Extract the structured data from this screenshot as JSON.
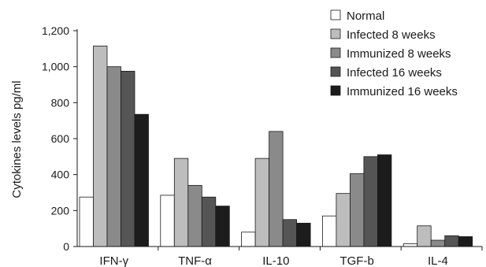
{
  "chart_data": {
    "type": "bar",
    "ylabel": "Cytokines levels pg/ml",
    "ylim": [
      0,
      1200
    ],
    "yticks": [
      0,
      200,
      400,
      600,
      800,
      1000,
      1200
    ],
    "ytick_labels": [
      "0",
      "200",
      "400",
      "600",
      "800",
      "1,000",
      "1,200"
    ],
    "categories": [
      "IFN-γ",
      "TNF-α",
      "IL-10",
      "TGF-b",
      "IL-4"
    ],
    "legend_position": "top-right",
    "series": [
      {
        "name": "Normal",
        "color": "#ffffff",
        "values": [
          275,
          285,
          80,
          170,
          15
        ]
      },
      {
        "name": "Infected 8 weeks",
        "color": "#bdbdbd",
        "values": [
          1115,
          490,
          490,
          295,
          115
        ]
      },
      {
        "name": "Immunized 8 weeks",
        "color": "#8a8a8a",
        "values": [
          1000,
          340,
          640,
          405,
          35
        ]
      },
      {
        "name": "Infected 16 weeks",
        "color": "#555555",
        "values": [
          975,
          275,
          150,
          500,
          60
        ]
      },
      {
        "name": "Immunized 16 weeks",
        "color": "#1c1c1c",
        "values": [
          735,
          225,
          130,
          510,
          55
        ]
      }
    ]
  }
}
